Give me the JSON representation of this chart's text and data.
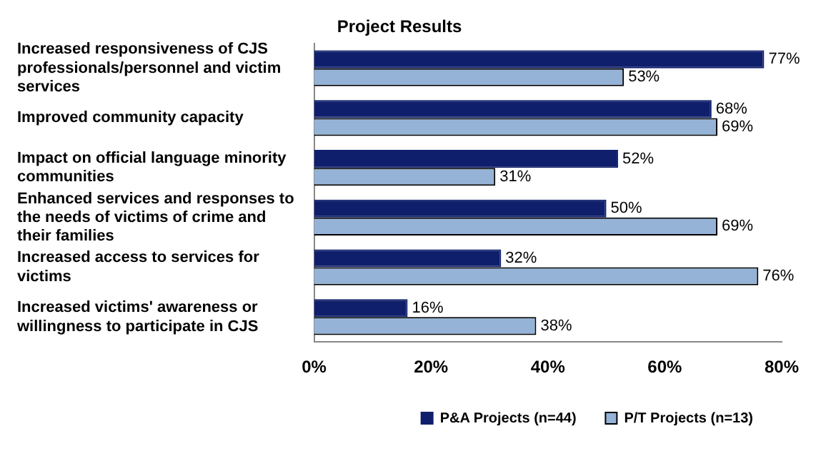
{
  "chart_data": {
    "type": "bar",
    "orientation": "horizontal",
    "title": "Project Results",
    "categories": [
      "Increased responsiveness of CJS professionals/personnel and victim services",
      "Improved community capacity",
      "Impact on official language minority communities",
      "Enhanced services and responses to the needs of victims of crime and their families",
      "Increased access to services for victims",
      "Increased victims' awareness or willingness to participate in CJS"
    ],
    "series": [
      {
        "name": "P&A Projects (n=44)",
        "color": "#0f1f6b",
        "values": [
          77,
          68,
          52,
          50,
          32,
          16
        ],
        "value_labels": [
          "77%",
          "68%",
          "52%",
          "50%",
          "32%",
          "16%"
        ]
      },
      {
        "name": "P/T Projects (n=13)",
        "color": "#95b3d7",
        "values": [
          53,
          69,
          31,
          69,
          76,
          38
        ],
        "value_labels": [
          "53%",
          "69%",
          "31%",
          "69%",
          "76%",
          "38%"
        ]
      }
    ],
    "xlim": [
      0,
      80
    ],
    "xticks": [
      {
        "value": 0,
        "label": "0%"
      },
      {
        "value": 20,
        "label": "20%"
      },
      {
        "value": 40,
        "label": "40%"
      },
      {
        "value": 60,
        "label": "60%"
      },
      {
        "value": 80,
        "label": "80%"
      }
    ],
    "grid": false,
    "legend": "bottom"
  }
}
